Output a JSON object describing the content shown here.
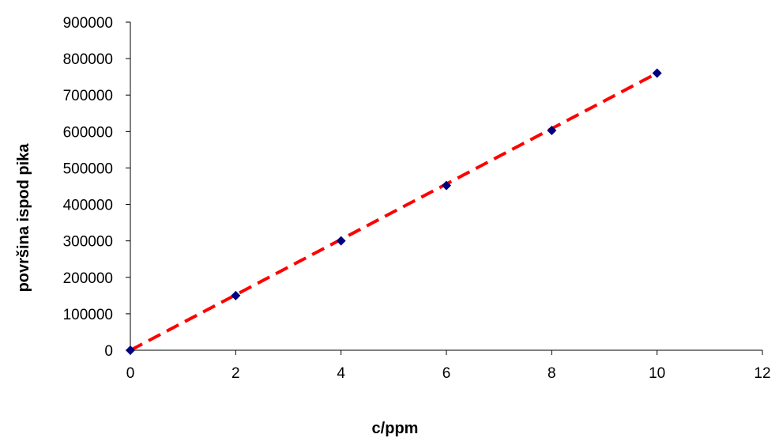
{
  "chart_data": {
    "type": "scatter",
    "xlabel": "c/ppm",
    "ylabel": "površina ispod pika",
    "xlim": [
      0,
      12
    ],
    "ylim": [
      0,
      900000
    ],
    "x_ticks": [
      "0",
      "2",
      "4",
      "6",
      "8",
      "10",
      "12"
    ],
    "y_ticks": [
      "0",
      "100000",
      "200000",
      "300000",
      "400000",
      "500000",
      "600000",
      "700000",
      "800000",
      "900000"
    ],
    "grid": false,
    "series": [
      {
        "x": [
          0,
          2,
          4,
          6,
          8,
          10
        ],
        "y": [
          0,
          150000,
          300000,
          452000,
          603000,
          760000
        ],
        "marker": "diamond",
        "color": "#00007f"
      }
    ],
    "trendline": {
      "type": "linear",
      "style": "dashed",
      "color": "#ff0000",
      "x": [
        0,
        10
      ],
      "y": [
        0,
        760000
      ]
    }
  }
}
